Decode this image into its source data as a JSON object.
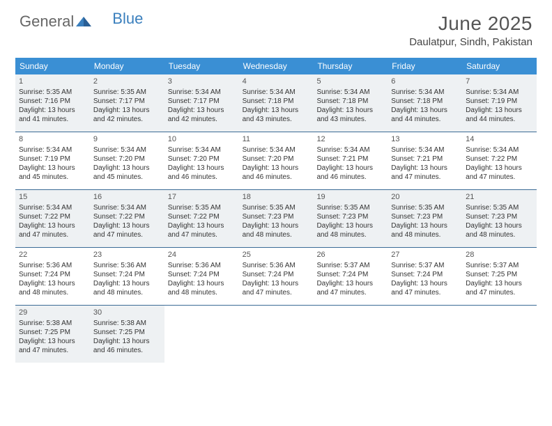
{
  "logo": {
    "text1": "General",
    "text2": "Blue"
  },
  "title": "June 2025",
  "location": "Daulatpur, Sindh, Pakistan",
  "colors": {
    "header_bg": "#3a8fd4",
    "header_text": "#ffffff",
    "divider": "#3a6a95",
    "shaded_bg": "#eef1f3",
    "text": "#333333",
    "logo_general": "#666666",
    "logo_blue": "#3a7fbd"
  },
  "day_names": [
    "Sunday",
    "Monday",
    "Tuesday",
    "Wednesday",
    "Thursday",
    "Friday",
    "Saturday"
  ],
  "weeks": [
    [
      {
        "num": "1",
        "sunrise": "5:35 AM",
        "sunset": "7:16 PM",
        "daylight": "13 hours and 41 minutes."
      },
      {
        "num": "2",
        "sunrise": "5:35 AM",
        "sunset": "7:17 PM",
        "daylight": "13 hours and 42 minutes."
      },
      {
        "num": "3",
        "sunrise": "5:34 AM",
        "sunset": "7:17 PM",
        "daylight": "13 hours and 42 minutes."
      },
      {
        "num": "4",
        "sunrise": "5:34 AM",
        "sunset": "7:18 PM",
        "daylight": "13 hours and 43 minutes."
      },
      {
        "num": "5",
        "sunrise": "5:34 AM",
        "sunset": "7:18 PM",
        "daylight": "13 hours and 43 minutes."
      },
      {
        "num": "6",
        "sunrise": "5:34 AM",
        "sunset": "7:18 PM",
        "daylight": "13 hours and 44 minutes."
      },
      {
        "num": "7",
        "sunrise": "5:34 AM",
        "sunset": "7:19 PM",
        "daylight": "13 hours and 44 minutes."
      }
    ],
    [
      {
        "num": "8",
        "sunrise": "5:34 AM",
        "sunset": "7:19 PM",
        "daylight": "13 hours and 45 minutes."
      },
      {
        "num": "9",
        "sunrise": "5:34 AM",
        "sunset": "7:20 PM",
        "daylight": "13 hours and 45 minutes."
      },
      {
        "num": "10",
        "sunrise": "5:34 AM",
        "sunset": "7:20 PM",
        "daylight": "13 hours and 46 minutes."
      },
      {
        "num": "11",
        "sunrise": "5:34 AM",
        "sunset": "7:20 PM",
        "daylight": "13 hours and 46 minutes."
      },
      {
        "num": "12",
        "sunrise": "5:34 AM",
        "sunset": "7:21 PM",
        "daylight": "13 hours and 46 minutes."
      },
      {
        "num": "13",
        "sunrise": "5:34 AM",
        "sunset": "7:21 PM",
        "daylight": "13 hours and 47 minutes."
      },
      {
        "num": "14",
        "sunrise": "5:34 AM",
        "sunset": "7:22 PM",
        "daylight": "13 hours and 47 minutes."
      }
    ],
    [
      {
        "num": "15",
        "sunrise": "5:34 AM",
        "sunset": "7:22 PM",
        "daylight": "13 hours and 47 minutes."
      },
      {
        "num": "16",
        "sunrise": "5:34 AM",
        "sunset": "7:22 PM",
        "daylight": "13 hours and 47 minutes."
      },
      {
        "num": "17",
        "sunrise": "5:35 AM",
        "sunset": "7:22 PM",
        "daylight": "13 hours and 47 minutes."
      },
      {
        "num": "18",
        "sunrise": "5:35 AM",
        "sunset": "7:23 PM",
        "daylight": "13 hours and 48 minutes."
      },
      {
        "num": "19",
        "sunrise": "5:35 AM",
        "sunset": "7:23 PM",
        "daylight": "13 hours and 48 minutes."
      },
      {
        "num": "20",
        "sunrise": "5:35 AM",
        "sunset": "7:23 PM",
        "daylight": "13 hours and 48 minutes."
      },
      {
        "num": "21",
        "sunrise": "5:35 AM",
        "sunset": "7:23 PM",
        "daylight": "13 hours and 48 minutes."
      }
    ],
    [
      {
        "num": "22",
        "sunrise": "5:36 AM",
        "sunset": "7:24 PM",
        "daylight": "13 hours and 48 minutes."
      },
      {
        "num": "23",
        "sunrise": "5:36 AM",
        "sunset": "7:24 PM",
        "daylight": "13 hours and 48 minutes."
      },
      {
        "num": "24",
        "sunrise": "5:36 AM",
        "sunset": "7:24 PM",
        "daylight": "13 hours and 48 minutes."
      },
      {
        "num": "25",
        "sunrise": "5:36 AM",
        "sunset": "7:24 PM",
        "daylight": "13 hours and 47 minutes."
      },
      {
        "num": "26",
        "sunrise": "5:37 AM",
        "sunset": "7:24 PM",
        "daylight": "13 hours and 47 minutes."
      },
      {
        "num": "27",
        "sunrise": "5:37 AM",
        "sunset": "7:24 PM",
        "daylight": "13 hours and 47 minutes."
      },
      {
        "num": "28",
        "sunrise": "5:37 AM",
        "sunset": "7:25 PM",
        "daylight": "13 hours and 47 minutes."
      }
    ],
    [
      {
        "num": "29",
        "sunrise": "5:38 AM",
        "sunset": "7:25 PM",
        "daylight": "13 hours and 47 minutes."
      },
      {
        "num": "30",
        "sunrise": "5:38 AM",
        "sunset": "7:25 PM",
        "daylight": "13 hours and 46 minutes."
      },
      null,
      null,
      null,
      null,
      null
    ]
  ],
  "labels": {
    "sunrise": "Sunrise: ",
    "sunset": "Sunset: ",
    "daylight": "Daylight: "
  }
}
